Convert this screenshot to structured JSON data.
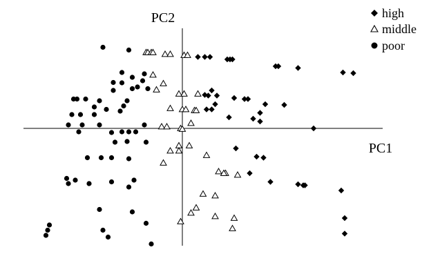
{
  "chart_data": {
    "type": "scatter",
    "title": "",
    "xlabel": "PC1",
    "ylabel": "PC2",
    "xlim": [
      -4.6,
      5.8
    ],
    "ylim": [
      -3.4,
      2.9
    ],
    "grid": false,
    "legend": {
      "position": "top-right",
      "entries": [
        "high",
        "middle",
        "poor"
      ]
    },
    "series": [
      {
        "name": "high",
        "marker": "diamond",
        "color": "#000000",
        "points": [
          [
            0.45,
            2.07
          ],
          [
            0.65,
            2.07
          ],
          [
            0.8,
            2.07
          ],
          [
            1.3,
            2.0
          ],
          [
            1.38,
            2.0
          ],
          [
            1.45,
            2.0
          ],
          [
            2.7,
            1.8
          ],
          [
            2.78,
            1.8
          ],
          [
            3.35,
            1.75
          ],
          [
            4.65,
            1.62
          ],
          [
            4.95,
            1.6
          ],
          [
            0.65,
            0.97
          ],
          [
            0.75,
            0.95
          ],
          [
            0.85,
            1.1
          ],
          [
            1.0,
            0.95
          ],
          [
            1.5,
            0.88
          ],
          [
            1.8,
            0.85
          ],
          [
            1.9,
            0.85
          ],
          [
            2.4,
            0.7
          ],
          [
            2.95,
            0.68
          ],
          [
            0.95,
            0.7
          ],
          [
            0.7,
            0.55
          ],
          [
            0.85,
            0.55
          ],
          [
            2.25,
            0.45
          ],
          [
            2.05,
            0.28
          ],
          [
            1.35,
            0.32
          ],
          [
            2.25,
            0.2
          ],
          [
            3.8,
            0.0
          ],
          [
            1.55,
            -0.58
          ],
          [
            2.15,
            -0.82
          ],
          [
            2.35,
            -0.85
          ],
          [
            1.95,
            -1.3
          ],
          [
            2.55,
            -1.55
          ],
          [
            3.35,
            -1.62
          ],
          [
            3.5,
            -1.65
          ],
          [
            3.55,
            -1.65
          ],
          [
            4.6,
            -1.8
          ],
          [
            4.7,
            -2.6
          ],
          [
            4.7,
            -3.05
          ]
        ]
      },
      {
        "name": "middle",
        "marker": "triangle-open",
        "color": "#000000",
        "points": [
          [
            -1.05,
            2.2
          ],
          [
            -1.0,
            2.2
          ],
          [
            -0.9,
            2.2
          ],
          [
            -0.85,
            2.2
          ],
          [
            -0.5,
            2.15
          ],
          [
            -0.35,
            2.15
          ],
          [
            0.05,
            2.12
          ],
          [
            0.15,
            2.12
          ],
          [
            -0.85,
            1.55
          ],
          [
            -0.55,
            1.3
          ],
          [
            -0.75,
            1.12
          ],
          [
            -0.1,
            1.0
          ],
          [
            0.05,
            1.0
          ],
          [
            0.45,
            1.0
          ],
          [
            -0.35,
            0.58
          ],
          [
            0.0,
            0.55
          ],
          [
            0.1,
            0.55
          ],
          [
            0.35,
            0.52
          ],
          [
            0.4,
            0.52
          ],
          [
            0.25,
            0.15
          ],
          [
            -0.6,
            0.05
          ],
          [
            -0.45,
            0.05
          ],
          [
            -0.05,
            0.0
          ],
          [
            0.0,
            -0.02
          ],
          [
            -0.1,
            -0.5
          ],
          [
            0.2,
            -0.5
          ],
          [
            -0.35,
            -0.65
          ],
          [
            -0.1,
            -0.65
          ],
          [
            0.7,
            -0.78
          ],
          [
            -0.55,
            -1.0
          ],
          [
            1.05,
            -1.25
          ],
          [
            1.25,
            -1.3
          ],
          [
            1.6,
            -1.35
          ],
          [
            1.2,
            -1.3
          ],
          [
            0.6,
            -1.9
          ],
          [
            0.95,
            -1.95
          ],
          [
            0.4,
            -2.3
          ],
          [
            0.25,
            -2.45
          ],
          [
            0.95,
            -2.55
          ],
          [
            1.5,
            -2.6
          ],
          [
            -0.05,
            -2.7
          ],
          [
            1.45,
            -2.9
          ]
        ]
      },
      {
        "name": "poor",
        "marker": "circle",
        "color": "#000000",
        "points": [
          [
            -2.3,
            2.35
          ],
          [
            -1.55,
            2.27
          ],
          [
            -1.75,
            1.62
          ],
          [
            -1.1,
            1.58
          ],
          [
            -1.45,
            1.48
          ],
          [
            -1.15,
            1.38
          ],
          [
            -2.0,
            1.33
          ],
          [
            -1.75,
            1.32
          ],
          [
            -1.3,
            1.2
          ],
          [
            -1.45,
            1.15
          ],
          [
            -1.0,
            1.15
          ],
          [
            -2.0,
            1.1
          ],
          [
            -3.15,
            0.85
          ],
          [
            -3.05,
            0.85
          ],
          [
            -2.8,
            0.85
          ],
          [
            -2.4,
            0.8
          ],
          [
            -1.6,
            0.8
          ],
          [
            -1.7,
            0.65
          ],
          [
            -2.55,
            0.62
          ],
          [
            -2.2,
            0.55
          ],
          [
            -1.8,
            0.5
          ],
          [
            -3.2,
            0.4
          ],
          [
            -2.95,
            0.4
          ],
          [
            -2.55,
            0.4
          ],
          [
            -3.3,
            0.1
          ],
          [
            -2.9,
            0.1
          ],
          [
            -2.4,
            0.1
          ],
          [
            -1.1,
            0.1
          ],
          [
            -3.0,
            -0.1
          ],
          [
            -1.75,
            -0.1
          ],
          [
            -1.55,
            -0.1
          ],
          [
            -1.35,
            -0.1
          ],
          [
            -2.05,
            -0.12
          ],
          [
            -1.6,
            -0.38
          ],
          [
            -1.05,
            -0.4
          ],
          [
            -1.95,
            -0.4
          ],
          [
            -2.75,
            -0.85
          ],
          [
            -2.35,
            -0.85
          ],
          [
            -2.05,
            -0.85
          ],
          [
            -1.55,
            -0.88
          ],
          [
            -3.35,
            -1.45
          ],
          [
            -3.1,
            -1.5
          ],
          [
            -2.05,
            -1.55
          ],
          [
            -1.4,
            -1.5
          ],
          [
            -3.3,
            -1.6
          ],
          [
            -2.7,
            -1.6
          ],
          [
            -1.55,
            -1.7
          ],
          [
            -2.4,
            -2.35
          ],
          [
            -1.45,
            -2.42
          ],
          [
            -3.85,
            -2.8
          ],
          [
            -3.9,
            -2.95
          ],
          [
            -2.3,
            -2.95
          ],
          [
            -1.05,
            -2.75
          ],
          [
            -3.95,
            -3.1
          ],
          [
            -2.15,
            -3.15
          ],
          [
            -0.9,
            -3.35
          ]
        ]
      }
    ]
  }
}
